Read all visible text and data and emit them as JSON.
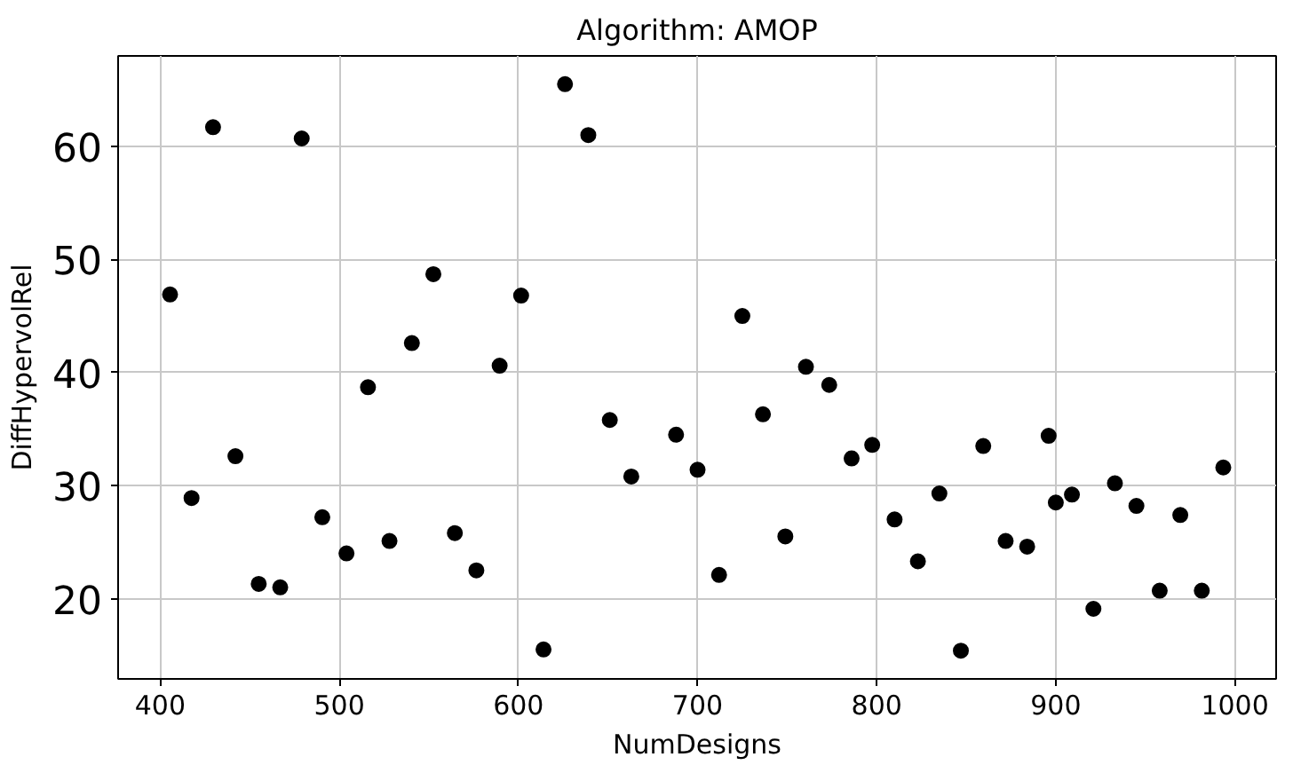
{
  "chart_data": {
    "type": "scatter",
    "title": "Algorithm: AMOP",
    "xlabel": "NumDesigns",
    "ylabel": "DiffHypervolRel",
    "x": [
      405.5,
      417.5,
      429.5,
      442,
      455,
      467,
      479,
      490.5,
      504,
      516,
      528,
      540.5,
      552.5,
      564.5,
      576.5,
      589.5,
      601.5,
      614,
      626,
      639,
      651,
      663,
      688,
      700,
      712,
      725,
      736.5,
      749,
      760.5,
      773.5,
      786,
      797.5,
      810,
      823,
      835,
      847,
      859.5,
      872,
      884,
      896,
      900,
      909,
      921,
      933,
      945,
      958,
      969.5,
      981.5,
      993.5
    ],
    "series": [
      {
        "color": "#000000",
        "values": [
          46.9,
          28.9,
          61.7,
          32.6,
          21.3,
          21.0,
          60.7,
          27.2,
          24.0,
          38.7,
          25.1,
          42.6,
          48.7,
          25.8,
          22.5,
          40.6,
          46.8,
          15.5,
          65.5,
          61.0,
          35.8,
          30.8,
          34.5,
          31.4,
          22.1,
          45.0,
          36.3,
          25.5,
          40.5,
          38.9,
          32.4,
          33.6,
          27.0,
          23.3,
          29.3,
          15.4,
          33.5,
          25.1,
          24.6,
          34.4,
          28.5,
          29.2,
          19.1,
          30.2,
          28.2,
          20.7,
          27.4,
          20.7,
          31.6
        ]
      }
    ],
    "xlim": [
      376.5,
      1023
    ],
    "ylim": [
      12.9,
      68.0
    ],
    "xticks": [
      400,
      500,
      600,
      700,
      800,
      900,
      1000
    ],
    "yticks": [
      20,
      30,
      40,
      50,
      60
    ],
    "grid": true,
    "marker": "circle"
  }
}
